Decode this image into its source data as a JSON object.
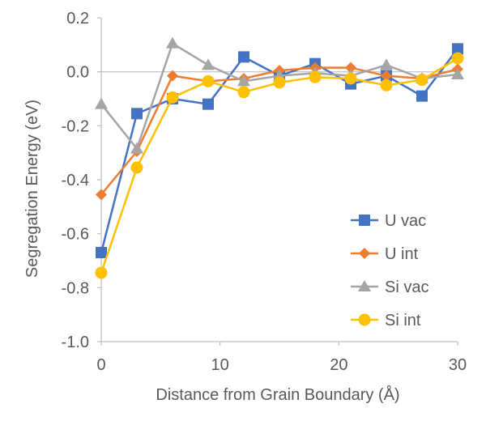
{
  "chart_data": {
    "type": "line",
    "title": "",
    "xlabel": "Distance from Grain Boundary (Å)",
    "ylabel": "Segregation Energy (eV)",
    "xlim": [
      0,
      30
    ],
    "ylim": [
      -1.0,
      0.2
    ],
    "xticks": [
      0,
      10,
      20,
      30
    ],
    "yticks": [
      -1.0,
      -0.8,
      -0.6,
      -0.4,
      -0.2,
      0.0,
      0.2
    ],
    "xtick_labels": [
      "0",
      "10",
      "20",
      "30"
    ],
    "ytick_labels": [
      "-1.0",
      "-0.8",
      "-0.6",
      "-0.4",
      "-0.2",
      "0.0",
      "0.2"
    ],
    "grid": false,
    "zero_line": true,
    "legend_position": "bottom-right",
    "x": [
      0,
      3,
      6,
      9,
      12,
      15,
      18,
      21,
      24,
      27,
      30
    ],
    "series": [
      {
        "name": "U vac",
        "color": "#4472C4",
        "marker": "square",
        "values": [
          -0.67,
          -0.155,
          -0.1,
          -0.12,
          0.055,
          -0.015,
          0.03,
          -0.045,
          -0.015,
          -0.09,
          0.085
        ]
      },
      {
        "name": "U int",
        "color": "#ED7D31",
        "marker": "diamond",
        "values": [
          -0.455,
          -0.295,
          -0.015,
          -0.035,
          -0.025,
          0.005,
          0.015,
          0.015,
          -0.015,
          -0.025,
          0.01
        ]
      },
      {
        "name": "Si vac",
        "color": "#A5A5A5",
        "marker": "triangle",
        "values": [
          -0.12,
          -0.285,
          0.105,
          0.025,
          -0.035,
          -0.015,
          -0.005,
          -0.015,
          0.025,
          -0.025,
          -0.01
        ]
      },
      {
        "name": "Si int",
        "color": "#FFC000",
        "marker": "circle",
        "values": [
          -0.745,
          -0.355,
          -0.095,
          -0.035,
          -0.075,
          -0.04,
          -0.02,
          -0.025,
          -0.05,
          -0.03,
          0.05
        ]
      }
    ]
  }
}
